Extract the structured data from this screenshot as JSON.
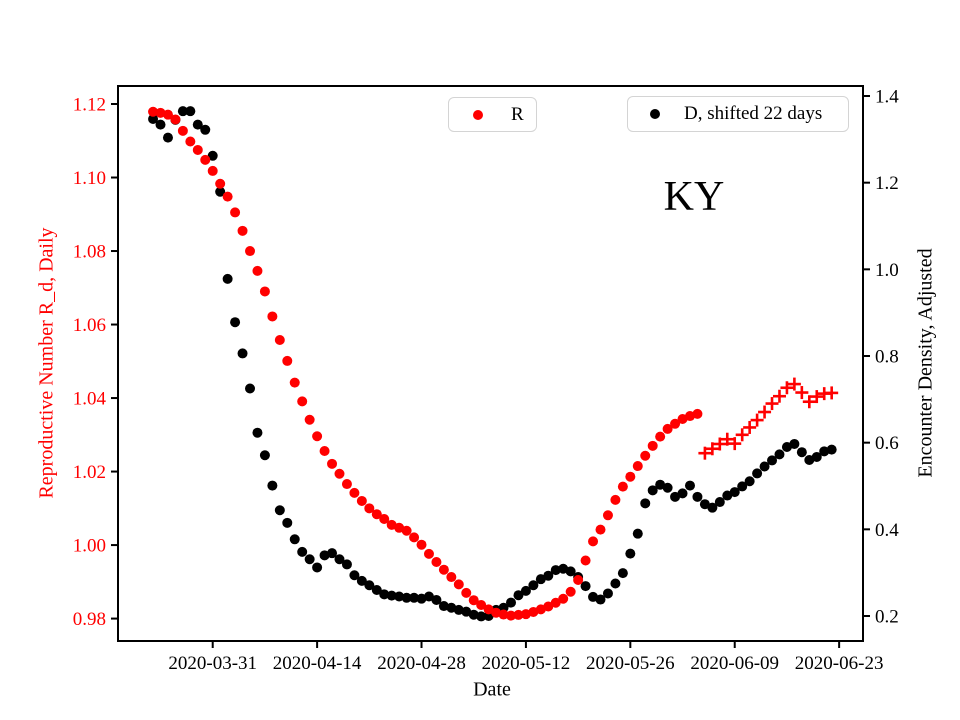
{
  "figure": {
    "annotation": "KY",
    "xlabel": "Date",
    "ylabel_left": "Reproductive Number R_d, Daily",
    "ylabel_right": "Encounter Density, Adjusted",
    "legend": [
      {
        "label": "R",
        "marker": "dot",
        "color": "#ff0000"
      },
      {
        "label": "D, shifted 22 days",
        "marker": "dot",
        "color": "#000000"
      }
    ],
    "colors": {
      "red_series": "#ff0000",
      "black_series": "#000000",
      "axis": "#000000",
      "legend_border": "#d4d4d4",
      "background": "#ffffff"
    }
  },
  "chart_data": {
    "type": "scatter",
    "title": "KY",
    "xlabel": "Date",
    "ylabel_left": "Reproductive Number R_d, Daily",
    "ylabel_right": "Encounter Density, Adjusted",
    "legend": [
      "R",
      "D, shifted 22 days"
    ],
    "legend_position": "upper center, two separate boxes",
    "grid": false,
    "epoch": "2020-03-23",
    "xlim_days_from_epoch": [
      -4.7,
      95.2
    ],
    "x_ticks": [
      "2020-03-31",
      "2020-04-14",
      "2020-04-28",
      "2020-05-12",
      "2020-05-26",
      "2020-06-09",
      "2020-06-23"
    ],
    "ylim_left": [
      0.9739,
      1.1249
    ],
    "left_ticks": [
      0.98,
      1.0,
      1.02,
      1.04,
      1.06,
      1.08,
      1.1,
      1.12
    ],
    "ylim_right": [
      0.1423,
      1.4231
    ],
    "right_ticks": [
      0.2,
      0.4,
      0.6,
      0.8,
      1.0,
      1.2,
      1.4
    ],
    "series": [
      {
        "name": "D, shifted 22 days",
        "axis": "right",
        "marker": "circle",
        "color": "#000000",
        "start_date": "2020-03-23",
        "cadence": "daily",
        "values": [
          1.347,
          1.334,
          1.304,
          1.345,
          1.365,
          1.365,
          1.334,
          1.322,
          1.262,
          1.179,
          0.978,
          0.878,
          0.806,
          0.725,
          0.623,
          0.571,
          0.501,
          0.444,
          0.415,
          0.377,
          0.348,
          0.331,
          0.312,
          0.34,
          0.345,
          0.331,
          0.319,
          0.294,
          0.281,
          0.271,
          0.26,
          0.25,
          0.247,
          0.245,
          0.242,
          0.242,
          0.24,
          0.245,
          0.237,
          0.223,
          0.219,
          0.214,
          0.21,
          0.203,
          0.199,
          0.2,
          0.214,
          0.219,
          0.231,
          0.248,
          0.258,
          0.271,
          0.285,
          0.293,
          0.306,
          0.309,
          0.303,
          0.29,
          0.269,
          0.244,
          0.238,
          0.252,
          0.275,
          0.299,
          0.344,
          0.39,
          0.46,
          0.49,
          0.503,
          0.496,
          0.475,
          0.483,
          0.501,
          0.475,
          0.458,
          0.45,
          0.463,
          0.478,
          0.486,
          0.499,
          0.511,
          0.529,
          0.545,
          0.559,
          0.573,
          0.59,
          0.597,
          0.578,
          0.56,
          0.567,
          0.58,
          0.584
        ]
      },
      {
        "name": "R",
        "axis": "left",
        "marker": "circle",
        "color": "#ff0000",
        "start_date": "2020-03-23",
        "cadence": "daily",
        "values": [
          1.1179,
          1.1176,
          1.1171,
          1.1158,
          1.1127,
          1.1098,
          1.1075,
          1.1048,
          1.1018,
          1.0983,
          1.0948,
          1.0905,
          1.0855,
          1.08,
          1.0746,
          1.069,
          1.0622,
          1.0558,
          1.0501,
          1.0442,
          1.0391,
          1.0341,
          1.0296,
          1.0256,
          1.0221,
          1.0194,
          1.0166,
          1.0142,
          1.012,
          1.01,
          1.0084,
          1.0071,
          1.0055,
          1.0047,
          1.0039,
          1.0021,
          1.0001,
          0.9976,
          0.9954,
          0.9933,
          0.9913,
          0.9893,
          0.987,
          0.985,
          0.9837,
          0.9825,
          0.9816,
          0.9811,
          0.9808,
          0.981,
          0.9812,
          0.9818,
          0.9825,
          0.9833,
          0.9843,
          0.9854,
          0.9873,
          0.9905,
          0.9958,
          1.001,
          1.0042,
          1.0081,
          1.0123,
          1.0159,
          1.0186,
          1.0215,
          1.0243,
          1.027,
          1.0295,
          1.0316,
          1.033,
          1.0343,
          1.0351,
          1.0357
        ]
      },
      {
        "name": "R",
        "axis": "left",
        "marker": "plus",
        "color": "#ff0000",
        "start_date": "2020-06-05",
        "cadence": "daily",
        "values": [
          1.025,
          1.0262,
          1.0275,
          1.0288,
          1.0276,
          1.03,
          1.032,
          1.034,
          1.0362,
          1.0385,
          1.0405,
          1.0428,
          1.0438,
          1.0415,
          1.039,
          1.0404,
          1.0412,
          1.0414
        ]
      }
    ]
  }
}
